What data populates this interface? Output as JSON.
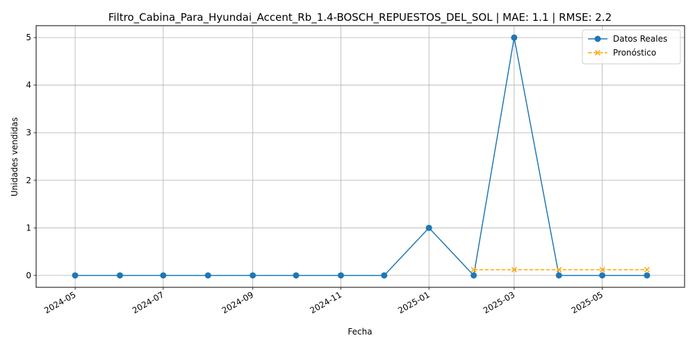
{
  "chart_data": {
    "type": "line",
    "title": "Filtro_Cabina_Para_Hyundai_Accent_Rb_1.4-BOSCH_REPUESTOS_DEL_SOL | MAE: 1.1 | RMSE: 2.2",
    "xlabel": "Fecha",
    "ylabel": "Unidades vendidas",
    "ylim": [
      -0.25,
      5.25
    ],
    "yticks": [
      0,
      1,
      2,
      3,
      4,
      5
    ],
    "xlim": [
      "2024-04-04",
      "2025-06-27"
    ],
    "xticks": [
      "2024-05",
      "2024-07",
      "2024-09",
      "2024-11",
      "2025-01",
      "2025-03",
      "2025-05"
    ],
    "grid": true,
    "legend_position": "top-right",
    "series": [
      {
        "name": "Datos Reales",
        "color": "#1f77b4",
        "marker": "circle",
        "linestyle": "solid",
        "x": [
          "2024-05-01",
          "2024-06-01",
          "2024-07-01",
          "2024-08-01",
          "2024-09-01",
          "2024-10-01",
          "2024-11-01",
          "2024-12-01",
          "2025-01-01",
          "2025-02-01",
          "2025-03-01",
          "2025-04-01",
          "2025-05-01",
          "2025-06-01"
        ],
        "values": [
          0,
          0,
          0,
          0,
          0,
          0,
          0,
          0,
          1,
          0,
          5,
          0,
          0,
          0
        ]
      },
      {
        "name": "Pronóstico",
        "color": "#ffa500",
        "marker": "x",
        "linestyle": "dashed",
        "x": [
          "2025-02-01",
          "2025-03-01",
          "2025-04-01",
          "2025-05-01",
          "2025-06-01"
        ],
        "values": [
          0.12,
          0.12,
          0.12,
          0.12,
          0.12
        ]
      }
    ]
  }
}
